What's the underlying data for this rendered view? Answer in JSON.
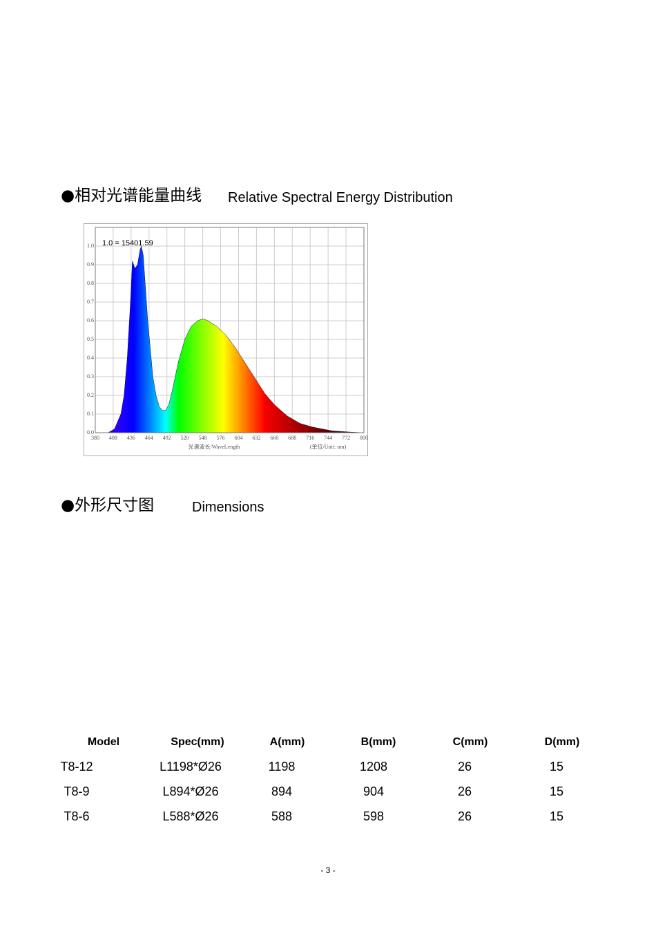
{
  "section1": {
    "bullet_title": "●相对光谱能量曲线",
    "title": "Relative Spectral Energy Distribution"
  },
  "chart_data": {
    "type": "area",
    "annotation": "1.0 = 15401.59",
    "xlabel": "光谱波长/WaveLength",
    "unit_label": "(单位/Unit: nm)",
    "x": [
      380,
      400,
      410,
      420,
      425,
      430,
      435,
      438,
      442,
      446,
      450,
      452,
      455,
      458,
      462,
      466,
      470,
      475,
      480,
      485,
      490,
      495,
      500,
      510,
      520,
      530,
      540,
      548,
      556,
      570,
      585,
      600,
      615,
      630,
      645,
      660,
      680,
      700,
      720,
      750,
      780,
      800
    ],
    "values": [
      0,
      0,
      0.02,
      0.1,
      0.2,
      0.4,
      0.7,
      0.92,
      0.88,
      0.9,
      0.98,
      1.0,
      0.95,
      0.8,
      0.6,
      0.45,
      0.3,
      0.2,
      0.14,
      0.12,
      0.12,
      0.15,
      0.22,
      0.38,
      0.5,
      0.57,
      0.6,
      0.61,
      0.6,
      0.57,
      0.52,
      0.45,
      0.37,
      0.29,
      0.21,
      0.15,
      0.09,
      0.05,
      0.03,
      0.01,
      0.003,
      0
    ],
    "xlim": [
      380,
      800
    ],
    "xticks": [
      380,
      408,
      436,
      464,
      492,
      520,
      548,
      576,
      604,
      632,
      660,
      688,
      716,
      744,
      772,
      800
    ],
    "ylim": [
      0,
      1.1
    ],
    "yticks": [
      {
        "value": 0,
        "label": "0.0"
      },
      0.1,
      0.2,
      0.3,
      0.4,
      0.5,
      0.6,
      0.7,
      0.8,
      0.9,
      {
        "value": 1,
        "label": "1.0"
      }
    ],
    "grid": true
  },
  "section2": {
    "bullet_title": "●外形尺寸图",
    "title": "Dimensions"
  },
  "table": {
    "header": [
      "Model",
      "Spec(mm)",
      "A(mm)",
      "B(mm)",
      "C(mm)",
      "D(mm)"
    ],
    "rows": [
      [
        "T8-12",
        "L1198*Ø26",
        1198,
        1208,
        26,
        15
      ],
      [
        "T8-9",
        "L894*Ø26",
        894,
        904,
        26,
        15
      ],
      [
        "T8-6",
        "L588*Ø26",
        588,
        598,
        26,
        15
      ]
    ]
  },
  "footer": "- 3 -"
}
